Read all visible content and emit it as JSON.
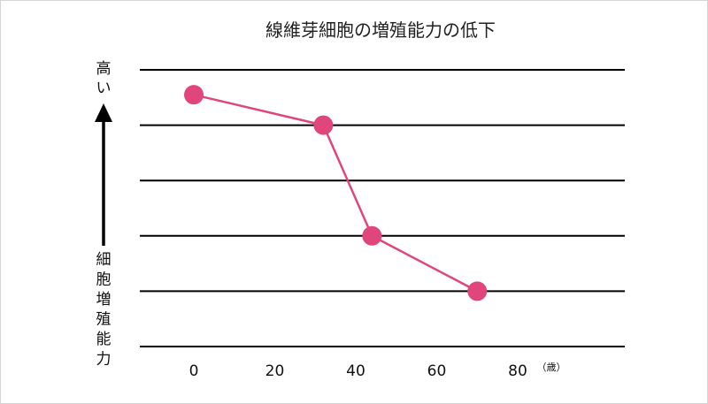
{
  "chart_data": {
    "type": "line",
    "title": "線維芽細胞の増殖能力の低下",
    "x_unit": "（歳）",
    "x_ticks": [
      0,
      20,
      40,
      60,
      80
    ],
    "xlim": [
      0,
      80
    ],
    "ylim": [
      0,
      5
    ],
    "gridlines": [
      0,
      1,
      2,
      3,
      4,
      5
    ],
    "y_label_top": "高い",
    "y_label_bottom": "細胞増殖能力",
    "series": [
      {
        "color": "#e0457b",
        "x": [
          0,
          32,
          44,
          70
        ],
        "y": [
          4.55,
          4.0,
          2.0,
          1.0
        ]
      }
    ],
    "grid": true,
    "legend": "none"
  }
}
